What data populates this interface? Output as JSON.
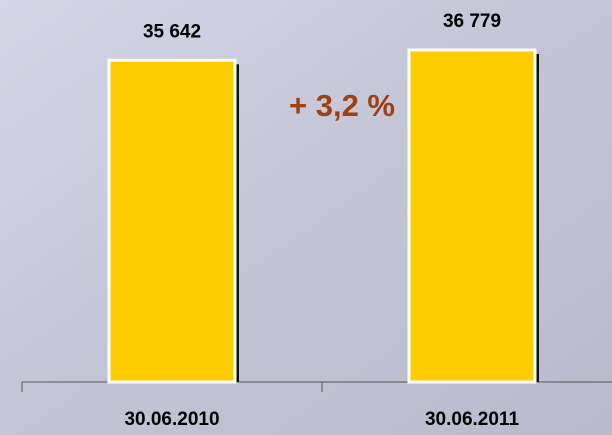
{
  "chart_data": {
    "type": "bar",
    "categories": [
      "30.06.2010",
      "30.06.2011"
    ],
    "values": [
      35642,
      36779
    ],
    "value_labels": [
      "35 642",
      "36 779"
    ],
    "color": "#ffcc00",
    "annotation": "+ 3,2 %"
  }
}
